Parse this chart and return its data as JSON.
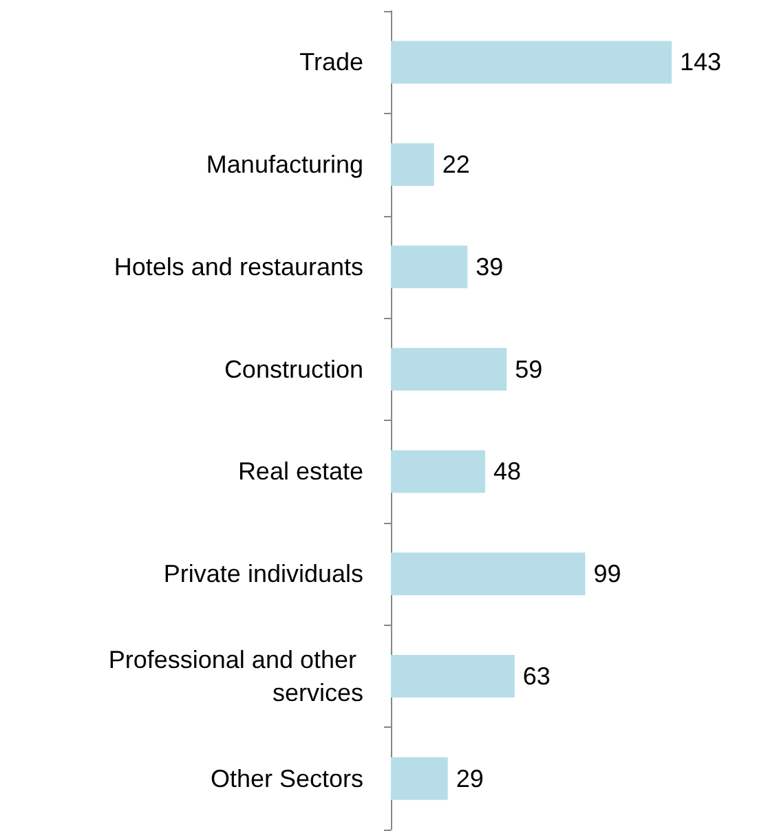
{
  "chart_data": {
    "type": "bar",
    "orientation": "horizontal",
    "data_labels": true,
    "categories": [
      "Trade",
      "Manufacturing",
      "Hotels and restaurants",
      "Construction",
      "Real estate",
      "Private individuals",
      "Professional and other services",
      "Other Sectors"
    ],
    "values": [
      143,
      22,
      39,
      59,
      48,
      99,
      63,
      29
    ],
    "color": "#b7dee8"
  }
}
